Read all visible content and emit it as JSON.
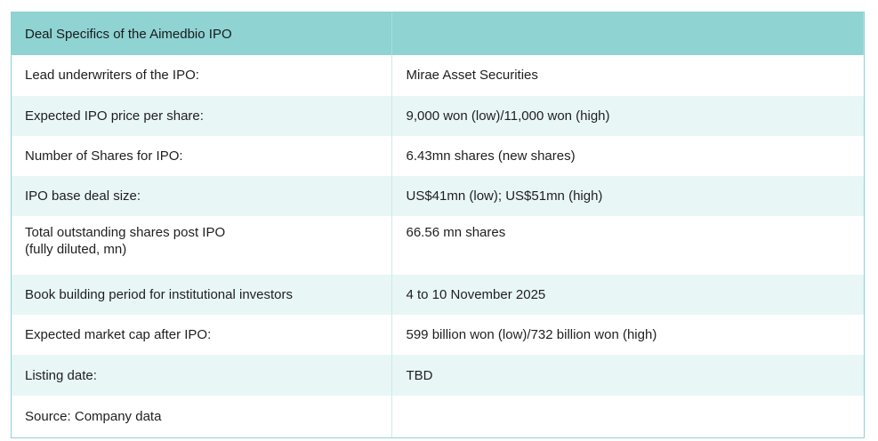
{
  "table": {
    "header": {
      "title": "Deal Specifics of the Aimedbio IPO",
      "value": ""
    },
    "rows": [
      {
        "label": "Lead underwriters of the IPO:",
        "value": "Mirae Asset Securities"
      },
      {
        "label": "Expected IPO price per share:",
        "value": "9,000 won (low)/11,000 won (high)"
      },
      {
        "label": "Number of Shares for IPO:",
        "value": "6.43mn shares (new shares)"
      },
      {
        "label": "IPO base deal size:",
        "value": "US$41mn (low); US$51mn (high)"
      },
      {
        "label_line1": "Total outstanding shares post IPO",
        "label_line2": "(fully diluted, mn)",
        "value": "66.56 mn shares"
      },
      {
        "label": "Book building period for institutional investors",
        "value": "4 to 10 November 2025"
      },
      {
        "label": "Expected market cap after IPO:",
        "value": "599 billion won (low)/732 billion won (high)"
      },
      {
        "label": "Listing date:",
        "value": "TBD"
      }
    ],
    "footer": {
      "source": "Source: Company data",
      "value": ""
    },
    "colors": {
      "header_bg": "#8fd3d3",
      "stripe_bg": "#e9f6f6",
      "border": "#8fd3d3"
    }
  }
}
